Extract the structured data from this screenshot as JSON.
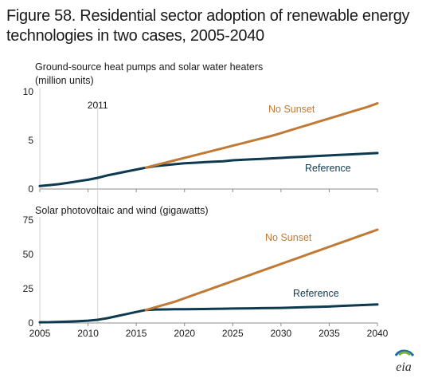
{
  "title": "Figure 58. Residential sector adoption of renewable energy technologies in two cases, 2005-2040",
  "logo_text": "eia",
  "colors": {
    "reference": "#0e3a4f",
    "no_sunset": "#c07a36",
    "axis": "#8c8c8c",
    "text": "#1a1a1a"
  },
  "chart_data": [
    {
      "type": "line",
      "title": "Ground-source heat pumps and solar water heaters (million units)",
      "title_lines": [
        "Ground-source heat pumps and solar water heaters",
        "(million units)"
      ],
      "xlim": [
        2005,
        2040
      ],
      "ylim": [
        0,
        10
      ],
      "yticks": [
        0,
        5,
        10
      ],
      "grid": false,
      "annotation": {
        "label": "2011",
        "x": 2011
      },
      "series": [
        {
          "name": "Reference",
          "x": [
            2005,
            2006,
            2007,
            2008,
            2009,
            2010,
            2011,
            2012,
            2013,
            2014,
            2015,
            2016,
            2017,
            2018,
            2019,
            2020,
            2021,
            2022,
            2023,
            2024,
            2025,
            2026,
            2027,
            2028,
            2029,
            2030,
            2031,
            2032,
            2033,
            2034,
            2035,
            2036,
            2037,
            2038,
            2039,
            2040
          ],
          "values": [
            0.3,
            0.4,
            0.5,
            0.65,
            0.8,
            0.95,
            1.15,
            1.4,
            1.6,
            1.8,
            2.0,
            2.2,
            2.35,
            2.45,
            2.55,
            2.65,
            2.7,
            2.75,
            2.8,
            2.85,
            2.95,
            3.0,
            3.05,
            3.1,
            3.15,
            3.2,
            3.25,
            3.3,
            3.35,
            3.4,
            3.45,
            3.5,
            3.55,
            3.6,
            3.65,
            3.7
          ]
        },
        {
          "name": "No Sunset",
          "x": [
            2016,
            2017,
            2018,
            2019,
            2020,
            2021,
            2022,
            2023,
            2024,
            2025,
            2026,
            2027,
            2028,
            2029,
            2030,
            2031,
            2032,
            2033,
            2034,
            2035,
            2036,
            2037,
            2038,
            2039,
            2040
          ],
          "values": [
            2.2,
            2.45,
            2.7,
            2.95,
            3.2,
            3.45,
            3.7,
            3.95,
            4.2,
            4.45,
            4.7,
            4.95,
            5.2,
            5.45,
            5.75,
            6.05,
            6.35,
            6.65,
            6.95,
            7.25,
            7.55,
            7.85,
            8.15,
            8.45,
            8.8
          ]
        }
      ]
    },
    {
      "type": "line",
      "title": "Solar photovoltaic and wind (gigawatts)",
      "xlim": [
        2005,
        2040
      ],
      "ylim": [
        0,
        75
      ],
      "yticks": [
        0,
        25,
        50,
        75
      ],
      "xticks": [
        2005,
        2010,
        2015,
        2020,
        2025,
        2030,
        2035,
        2040
      ],
      "grid": false,
      "series": [
        {
          "name": "Reference",
          "x": [
            2005,
            2006,
            2007,
            2008,
            2009,
            2010,
            2011,
            2012,
            2013,
            2014,
            2015,
            2016,
            2017,
            2018,
            2019,
            2020,
            2021,
            2022,
            2023,
            2024,
            2025,
            2026,
            2027,
            2028,
            2029,
            2030,
            2031,
            2032,
            2033,
            2034,
            2035,
            2036,
            2037,
            2038,
            2039,
            2040
          ],
          "values": [
            0.5,
            0.6,
            0.8,
            1.0,
            1.3,
            1.7,
            2.3,
            3.5,
            5.0,
            6.5,
            8.0,
            9.5,
            9.8,
            9.9,
            10.0,
            10.0,
            10.1,
            10.2,
            10.3,
            10.4,
            10.5,
            10.6,
            10.7,
            10.8,
            10.9,
            11.0,
            11.2,
            11.4,
            11.6,
            11.8,
            12.0,
            12.3,
            12.6,
            12.9,
            13.2,
            13.5
          ]
        },
        {
          "name": "No Sunset",
          "x": [
            2016,
            2017,
            2018,
            2019,
            2020,
            2021,
            2022,
            2023,
            2024,
            2025,
            2026,
            2027,
            2028,
            2029,
            2030,
            2031,
            2032,
            2033,
            2034,
            2035,
            2036,
            2037,
            2038,
            2039,
            2040
          ],
          "values": [
            9.5,
            11.5,
            13.5,
            15.5,
            18.0,
            20.5,
            23.0,
            25.5,
            28.0,
            30.5,
            33.0,
            35.5,
            38.0,
            40.5,
            43.0,
            45.5,
            48.0,
            50.5,
            53.0,
            55.5,
            58.0,
            60.5,
            63.0,
            65.5,
            68.0
          ]
        }
      ]
    }
  ]
}
